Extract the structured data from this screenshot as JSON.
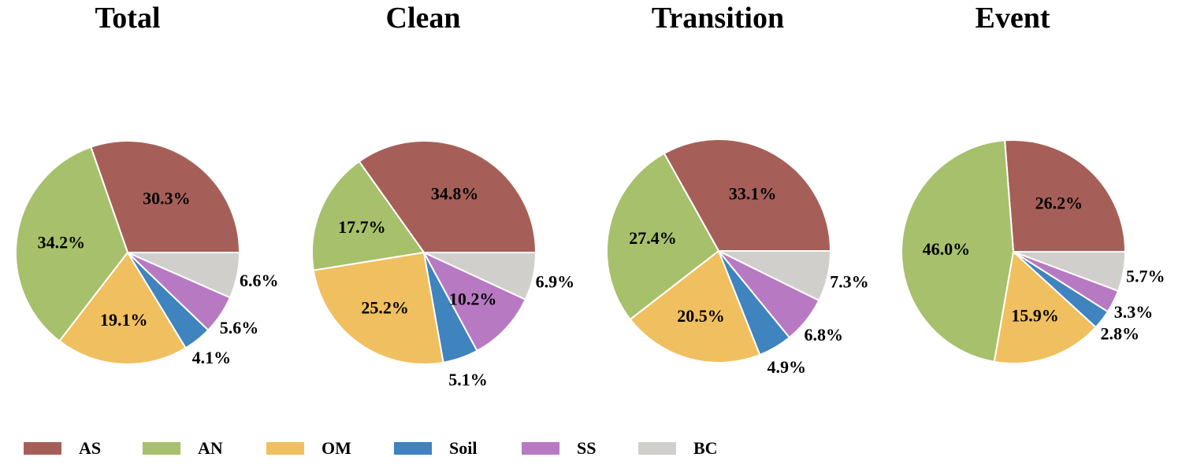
{
  "chart_data": [
    {
      "type": "pie",
      "title": "Total",
      "categories": [
        "AS",
        "AN",
        "OM",
        "Soil",
        "SS",
        "BC"
      ],
      "values": [
        30.3,
        34.2,
        19.1,
        4.1,
        5.6,
        6.6
      ],
      "value_labels": [
        "30.3%",
        "34.2%",
        "19.1%",
        "4.1%",
        "5.6%",
        "6.6%"
      ]
    },
    {
      "type": "pie",
      "title": "Clean",
      "categories": [
        "AS",
        "AN",
        "OM",
        "Soil",
        "SS",
        "BC"
      ],
      "values": [
        34.8,
        17.7,
        25.2,
        5.1,
        10.2,
        6.9
      ],
      "value_labels": [
        "34.8%",
        "17.7%",
        "25.2%",
        "5.1%",
        "10.2%",
        "6.9%"
      ]
    },
    {
      "type": "pie",
      "title": "Transition",
      "categories": [
        "AS",
        "AN",
        "OM",
        "Soil",
        "SS",
        "BC"
      ],
      "values": [
        33.1,
        27.4,
        20.5,
        4.9,
        6.8,
        7.3
      ],
      "value_labels": [
        "33.1%",
        "27.4%",
        "20.5%",
        "4.9%",
        "6.8%",
        "7.3%"
      ]
    },
    {
      "type": "pie",
      "title": "Event",
      "categories": [
        "AS",
        "AN",
        "OM",
        "Soil",
        "SS",
        "BC"
      ],
      "values": [
        26.2,
        46.0,
        15.9,
        2.8,
        3.3,
        5.7
      ],
      "value_labels": [
        "26.2%",
        "46.0%",
        "15.9%",
        "2.8%",
        "3.3%",
        "5.7%"
      ]
    }
  ],
  "legend": {
    "placement": "bottom",
    "items": [
      {
        "label": "AS",
        "color": "#a65f58"
      },
      {
        "label": "AN",
        "color": "#a7c06c"
      },
      {
        "label": "OM",
        "color": "#f0bf5f"
      },
      {
        "label": "Soil",
        "color": "#3f83bf"
      },
      {
        "label": "SS",
        "color": "#b879c3"
      },
      {
        "label": "BC",
        "color": "#d0cfcb"
      }
    ]
  }
}
